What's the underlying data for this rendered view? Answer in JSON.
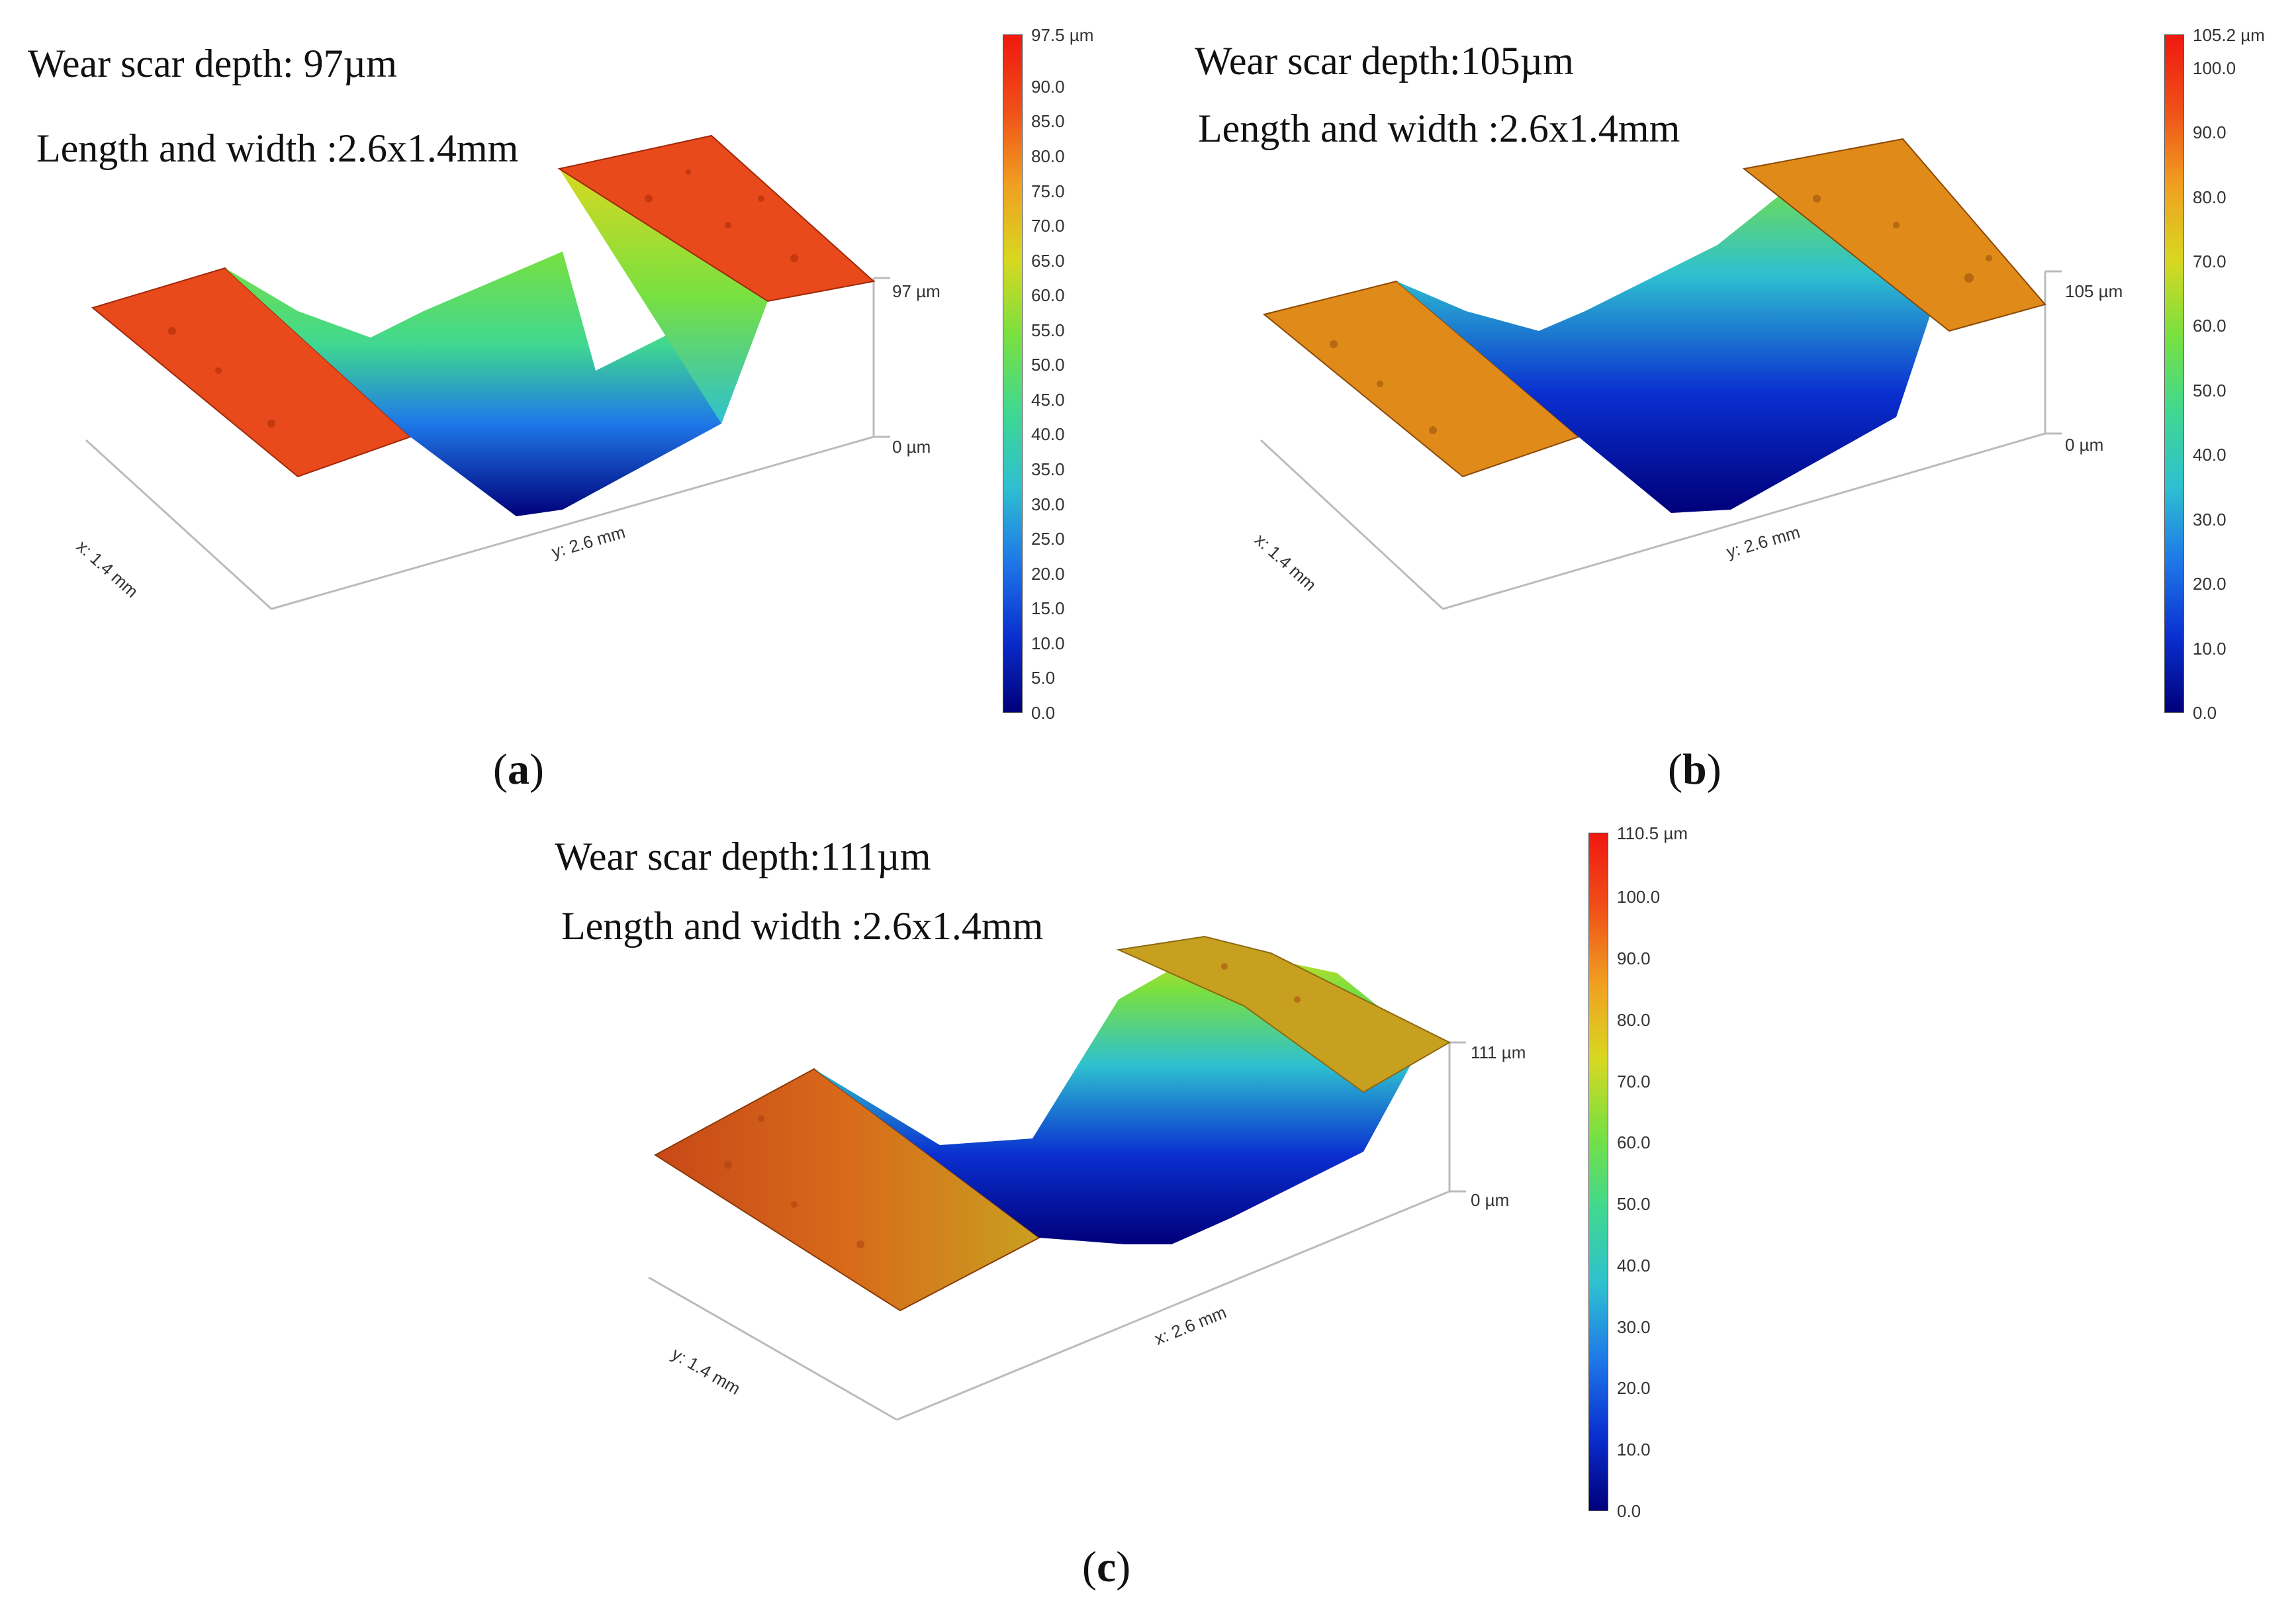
{
  "panels": [
    {
      "id": "a",
      "caption_open": "(",
      "caption_letter": "a",
      "caption_close": ")",
      "depth_text": "Wear scar depth: 97µm",
      "size_text": "Length and width :2.6x1.4mm",
      "x_axis_label": "x: 1.4 mm",
      "y_axis_label": "y: 2.6 mm",
      "z_top_label": "97 µm",
      "z_bottom_label": "0 µm",
      "colorbar_max_label": "97.5 µm",
      "colorbar_max": 97.5,
      "colorbar_ticks": [
        "90.0",
        "85.0",
        "80.0",
        "75.0",
        "70.0",
        "65.0",
        "60.0",
        "55.0",
        "50.0",
        "45.0",
        "40.0",
        "35.0",
        "30.0",
        "25.0",
        "20.0",
        "15.0",
        "10.0",
        "5.0",
        "0.0"
      ],
      "colorbar_tick_values": [
        90,
        85,
        80,
        75,
        70,
        65,
        60,
        55,
        50,
        45,
        40,
        35,
        30,
        25,
        20,
        15,
        10,
        5,
        0
      ],
      "flat_surface_color": "#e84a1c"
    },
    {
      "id": "b",
      "caption_open": "(",
      "caption_letter": "b",
      "caption_close": ")",
      "depth_text": "Wear scar depth:105µm",
      "size_text": "Length and width :2.6x1.4mm",
      "x_axis_label": "x: 1.4 mm",
      "y_axis_label": "y: 2.6 mm",
      "z_top_label": "105 µm",
      "z_bottom_label": "0 µm",
      "colorbar_max_label": "105.2 µm",
      "colorbar_max": 105.2,
      "colorbar_ticks": [
        "100.0",
        "90.0",
        "80.0",
        "70.0",
        "60.0",
        "50.0",
        "40.0",
        "30.0",
        "20.0",
        "10.0",
        "0.0"
      ],
      "colorbar_tick_values": [
        100,
        90,
        80,
        70,
        60,
        50,
        40,
        30,
        20,
        10,
        0
      ],
      "flat_surface_color": "#e08a1a"
    },
    {
      "id": "c",
      "caption_open": "(",
      "caption_letter": "c",
      "caption_close": ")",
      "depth_text": "Wear scar depth:111µm",
      "size_text": "Length and width :2.6x1.4mm",
      "x_axis_label": "y: 1.4 mm",
      "y_axis_label": "x: 2.6 mm",
      "z_top_label": "111 µm",
      "z_bottom_label": "0 µm",
      "colorbar_max_label": "110.5 µm",
      "colorbar_max": 110.5,
      "colorbar_ticks": [
        "100.0",
        "90.0",
        "80.0",
        "70.0",
        "60.0",
        "50.0",
        "40.0",
        "30.0",
        "20.0",
        "10.0",
        "0.0"
      ],
      "colorbar_tick_values": [
        100,
        90,
        80,
        70,
        60,
        50,
        40,
        30,
        20,
        10,
        0
      ],
      "flat_surface_color": "#c8a020"
    }
  ],
  "colormap": [
    "#00007a",
    "#0a2fd0",
    "#1e78e8",
    "#2ec0d0",
    "#40d890",
    "#78e040",
    "#d8d820",
    "#f0a020",
    "#f05018",
    "#f01810"
  ]
}
